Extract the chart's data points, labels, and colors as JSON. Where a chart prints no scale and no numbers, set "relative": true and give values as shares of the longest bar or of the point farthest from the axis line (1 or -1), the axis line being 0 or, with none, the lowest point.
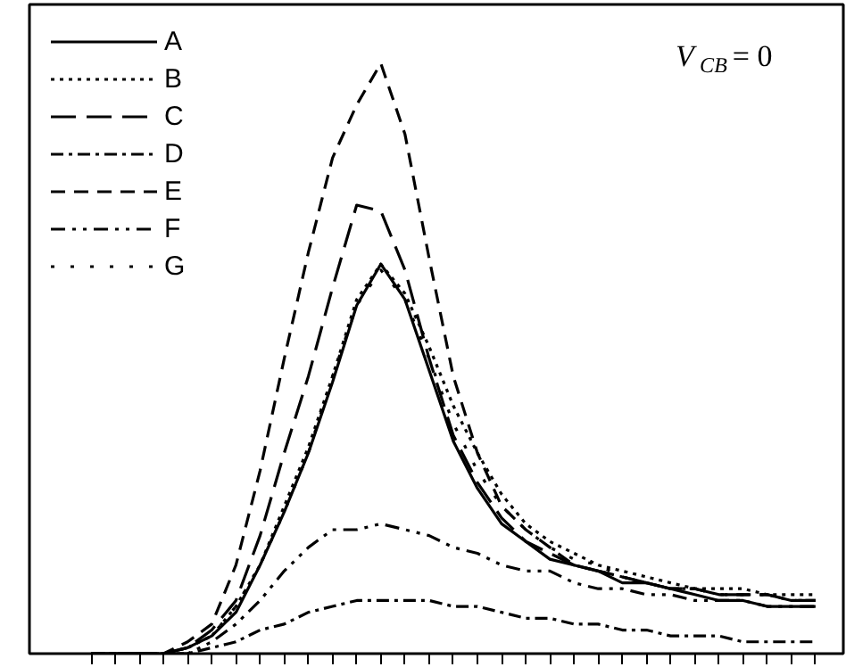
{
  "chart_data": {
    "type": "line",
    "relative": true,
    "legend": "top left",
    "grid": false,
    "categories": [
      null,
      null,
      null,
      null,
      null,
      null,
      null,
      null,
      null,
      null,
      null,
      null,
      null,
      null,
      null,
      null,
      null,
      null,
      null,
      null,
      null,
      null,
      null,
      null,
      null,
      null,
      null,
      null,
      null,
      null,
      null
    ],
    "annotations": [
      "V$_{CB}$ = 0"
    ],
    "series": [
      {
        "name": "A",
        "color": "#000000",
        "line_style": "solid",
        "values": [
          0,
          0,
          0,
          0,
          0.01,
          0.03,
          0.07,
          0.15,
          0.24,
          0.34,
          0.46,
          0.59,
          0.66,
          0.6,
          0.48,
          0.36,
          0.28,
          0.22,
          0.19,
          0.16,
          0.15,
          0.14,
          0.12,
          0.12,
          0.11,
          0.1,
          0.09,
          0.09,
          0.08,
          0.08,
          0.08
        ]
      },
      {
        "name": "B",
        "color": "#000000",
        "line_style": "dotted",
        "values": [
          0,
          0,
          0,
          0,
          0.01,
          0.03,
          0.08,
          0.15,
          0.25,
          0.35,
          0.47,
          0.6,
          0.66,
          0.61,
          0.52,
          0.42,
          0.34,
          0.27,
          0.22,
          0.19,
          0.17,
          0.15,
          0.14,
          0.13,
          0.12,
          0.11,
          0.11,
          0.11,
          0.1,
          0.1,
          0.1
        ]
      },
      {
        "name": "C",
        "color": "#000000",
        "line_style": "longdash",
        "values": [
          0,
          0,
          0,
          0,
          0.01,
          0.04,
          0.09,
          0.2,
          0.34,
          0.47,
          0.62,
          0.76,
          0.75,
          0.65,
          0.5,
          0.37,
          0.29,
          0.23,
          0.19,
          0.17,
          0.15,
          0.14,
          0.13,
          0.12,
          0.11,
          0.11,
          0.1,
          0.1,
          0.1,
          0.09,
          0.09
        ]
      },
      {
        "name": "D",
        "color": "#000000",
        "line_style": "dashdot",
        "values": [
          0,
          0,
          0,
          0,
          0,
          0.01,
          0.02,
          0.04,
          0.05,
          0.07,
          0.08,
          0.09,
          0.09,
          0.09,
          0.09,
          0.08,
          0.08,
          0.07,
          0.06,
          0.06,
          0.05,
          0.05,
          0.04,
          0.04,
          0.03,
          0.03,
          0.03,
          0.02,
          0.02,
          0.02,
          0.02
        ]
      },
      {
        "name": "E",
        "color": "#000000",
        "line_style": "dashed",
        "values": [
          0,
          0,
          0,
          0,
          0.02,
          0.05,
          0.15,
          0.31,
          0.5,
          0.68,
          0.84,
          0.93,
          1,
          0.88,
          0.67,
          0.47,
          0.34,
          0.25,
          0.21,
          0.18,
          0.15,
          0.14,
          0.13,
          0.12,
          0.11,
          0.11,
          0.1,
          0.1,
          0.1,
          0.09,
          0.09
        ]
      },
      {
        "name": "F",
        "color": "#000000",
        "line_style": "dashdotdot",
        "values": [
          0,
          0,
          0,
          0,
          0,
          0.02,
          0.05,
          0.09,
          0.14,
          0.18,
          0.21,
          0.21,
          0.22,
          0.21,
          0.2,
          0.18,
          0.17,
          0.15,
          0.14,
          0.14,
          0.12,
          0.11,
          0.11,
          0.1,
          0.1,
          0.09,
          0.09,
          0.09,
          0.08,
          0.08,
          0.08
        ]
      },
      {
        "name": "G",
        "color": "#000000",
        "line_style": "loosedot",
        "values": [
          0,
          0,
          0,
          0,
          0.01,
          0.03,
          0.08,
          0.15,
          0.24,
          0.34,
          0.47,
          0.59,
          0.65,
          0.6,
          0.5,
          0.39,
          0.31,
          0.25,
          0.21,
          0.18,
          0.16,
          0.15,
          0.13,
          0.12,
          0.11,
          0.11,
          0.1,
          0.1,
          0.1,
          0.09,
          0.09
        ]
      }
    ]
  }
}
